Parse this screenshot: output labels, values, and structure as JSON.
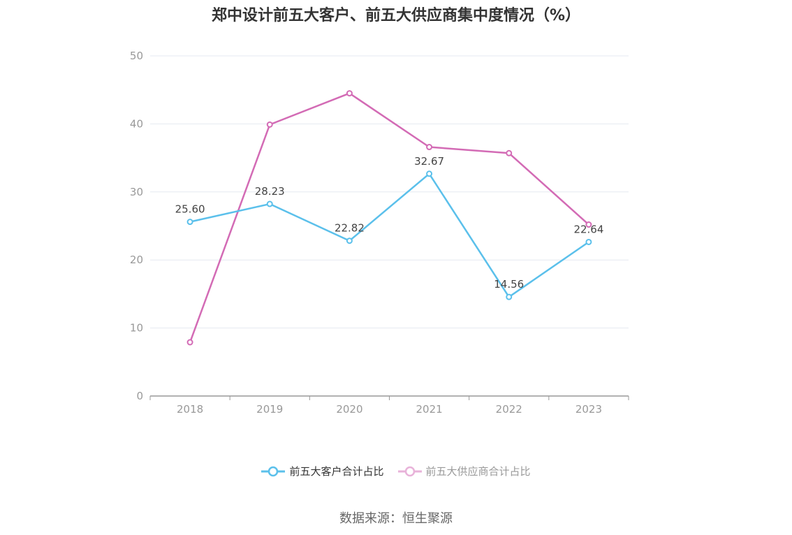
{
  "chart_data": {
    "type": "line",
    "title": "郑中设计前五大客户、前五大供应商集中度情况（%）",
    "categories": [
      "2018",
      "2019",
      "2020",
      "2021",
      "2022",
      "2023"
    ],
    "ylim": [
      0,
      50
    ],
    "yticks": [
      "0",
      "10",
      "20",
      "30",
      "40",
      "50"
    ],
    "grid": true,
    "legend_position": "bottom",
    "series": [
      {
        "name": "前五大客户合计占比",
        "color": "#5bc0eb",
        "values": [
          25.6,
          28.23,
          22.82,
          32.67,
          14.56,
          22.64
        ],
        "labels": [
          "25.60",
          "28.23",
          "22.82",
          "32.67",
          "14.56",
          "22.64"
        ]
      },
      {
        "name": "前五大供应商合计占比",
        "color": "#d36bb5",
        "legend_color": "#e8b2d9",
        "values": [
          7.9,
          39.9,
          44.5,
          36.6,
          35.7,
          25.2
        ]
      }
    ]
  },
  "source": "数据来源：恒生聚源"
}
